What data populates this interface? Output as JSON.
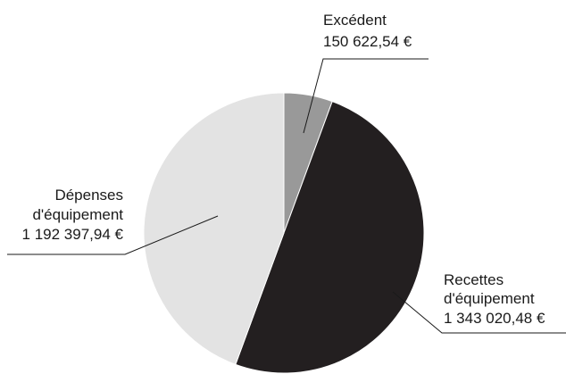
{
  "chart_data": {
    "type": "pie",
    "title": "",
    "slices": [
      {
        "label": "Excédent",
        "label_lines": [
          "Excédent"
        ],
        "value": 150622.54,
        "value_label": "150 622,54 €",
        "color": "#999999"
      },
      {
        "label": "Recettes d'équipement",
        "label_lines": [
          "Recettes",
          "d'équipement"
        ],
        "value": 1343020.48,
        "value_label": "1 343 020,48 €",
        "color": "#231f20"
      },
      {
        "label": "Dépenses d'équipement",
        "label_lines": [
          "Dépenses",
          "d'équipement"
        ],
        "value": 1192397.94,
        "value_label": "1 192 397,94 €",
        "color": "#e3e3e3"
      }
    ]
  }
}
